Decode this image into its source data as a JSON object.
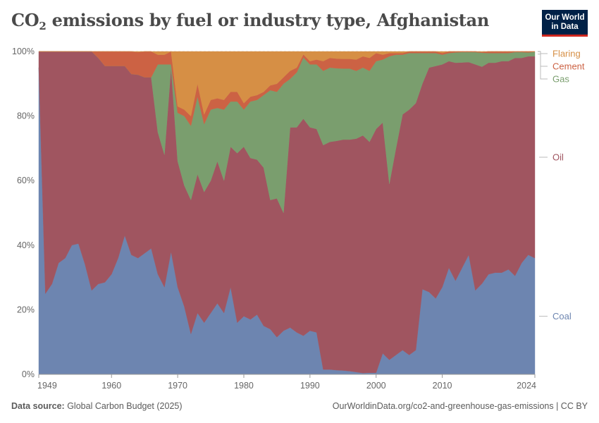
{
  "header": {
    "title_main": "CO",
    "title_sub": "2",
    "title_rest": " emissions by fuel or industry type, Afghanistan",
    "logo_line1": "Our World",
    "logo_line2": "in Data"
  },
  "footer": {
    "source_label": "Data source:",
    "source_value": " Global Carbon Budget (2025)",
    "link": "OurWorldinData.org/co2-and-greenhouse-gas-emissions | CC BY"
  },
  "colors": {
    "coal": "#6d85b0",
    "oil": "#a05560",
    "gas": "#7a9e6e",
    "cement": "#cc6244",
    "flaring": "#d68f45",
    "grid": "#dddddd",
    "axis_text": "#666666"
  },
  "chart_data": {
    "type": "area",
    "stacked": true,
    "normalized": true,
    "title": "CO₂ emissions by fuel or industry type, Afghanistan",
    "x": [
      1949,
      1950,
      1951,
      1952,
      1953,
      1954,
      1955,
      1956,
      1957,
      1958,
      1959,
      1960,
      1961,
      1962,
      1963,
      1964,
      1965,
      1966,
      1967,
      1968,
      1969,
      1970,
      1971,
      1972,
      1973,
      1974,
      1975,
      1976,
      1977,
      1978,
      1979,
      1980,
      1981,
      1982,
      1983,
      1984,
      1985,
      1986,
      1987,
      1988,
      1989,
      1990,
      1991,
      1992,
      1993,
      1994,
      1995,
      1996,
      1997,
      1998,
      1999,
      2000,
      2001,
      2002,
      2003,
      2004,
      2005,
      2006,
      2007,
      2008,
      2009,
      2010,
      2011,
      2012,
      2013,
      2014,
      2015,
      2016,
      2017,
      2018,
      2019,
      2020,
      2021,
      2022,
      2023,
      2024
    ],
    "xticks": [
      1949,
      1960,
      1970,
      1980,
      1990,
      2000,
      2010,
      2024
    ],
    "yticks": [
      0,
      20,
      40,
      60,
      80,
      100
    ],
    "ytick_labels": [
      "0%",
      "20%",
      "40%",
      "60%",
      "80%",
      "100%"
    ],
    "ylim": [
      0,
      100
    ],
    "series": [
      {
        "name": "Coal",
        "values": [
          95,
          25,
          28,
          34.5,
          36,
          40,
          40.5,
          34,
          26,
          28,
          28.5,
          31,
          36,
          43,
          37,
          36,
          37.5,
          39,
          31,
          27,
          38,
          27,
          21,
          12.5,
          19,
          16,
          19,
          22,
          19,
          27,
          16,
          18,
          17,
          18.5,
          15,
          14,
          11.5,
          13.5,
          14.5,
          13,
          12,
          13.5,
          13,
          1.5,
          1.5,
          1.3,
          1.2,
          1.0,
          0.7,
          0.4,
          0.5,
          0.5,
          6.5,
          4.5,
          6,
          7.5,
          6,
          7.5,
          26.5,
          25.5,
          23.5,
          27,
          33,
          29,
          33,
          37,
          26,
          28,
          31,
          31.5,
          31.5,
          32.5,
          30.5,
          34.5,
          37,
          36
        ]
      },
      {
        "name": "Oil",
        "values": [
          5,
          75,
          72,
          65.5,
          64,
          60,
          59.5,
          66,
          74,
          70,
          67,
          64.5,
          59.5,
          52.5,
          56,
          56.8,
          54.5,
          53,
          44,
          41,
          57,
          39,
          37.5,
          41.5,
          43,
          40.5,
          41,
          44,
          41,
          43.5,
          52.5,
          52.5,
          50,
          48,
          49,
          40,
          43,
          36.5,
          62,
          63.5,
          67.5,
          63,
          63,
          69.5,
          70.5,
          71,
          71.5,
          71.7,
          72.3,
          73.6,
          71.5,
          75.5,
          71.5,
          54.5,
          64,
          73,
          76,
          76.5,
          64,
          69.5,
          72,
          69,
          64,
          67.5,
          63.6,
          59.7,
          70,
          67,
          65.5,
          65,
          65.5,
          64.5,
          67.5,
          63.5,
          61.5,
          62.5
        ]
      },
      {
        "name": "Gas",
        "values": [
          0,
          0,
          0,
          0,
          0,
          0,
          0,
          0,
          0,
          0,
          0,
          0,
          0,
          0,
          0,
          0,
          0,
          0,
          21,
          28,
          1,
          15,
          21.5,
          23,
          24,
          21,
          22,
          16.5,
          22,
          14,
          16,
          11.5,
          17.5,
          18.5,
          22.5,
          34,
          33,
          40,
          15,
          17,
          19,
          19.5,
          20,
          23,
          23,
          22.5,
          22,
          22,
          21,
          21,
          22,
          21,
          19.5,
          39.5,
          29,
          18.5,
          17.5,
          15.5,
          9.5,
          4.5,
          4,
          3,
          2.5,
          3.2,
          3.2,
          3.1,
          3.8,
          4.3,
          3,
          3,
          2.5,
          2.5,
          1.8,
          1.8,
          1.2,
          1.4
        ]
      },
      {
        "name": "Cement",
        "values": [
          0,
          0,
          0,
          0,
          0,
          0,
          0,
          0,
          0,
          2,
          4.5,
          4.5,
          4.5,
          4.5,
          7,
          7,
          8,
          8,
          3,
          3,
          4,
          2,
          2,
          3,
          4,
          3,
          3,
          3,
          3,
          3,
          3,
          2,
          1.5,
          1.5,
          1,
          1.5,
          2.5,
          2,
          2.5,
          1.5,
          1,
          1,
          1.5,
          3,
          3,
          3,
          3,
          3,
          3.5,
          3.5,
          4,
          2.5,
          1.5,
          1,
          0.5,
          0.5,
          0.5,
          0.5,
          0.5,
          0.5,
          0.5,
          0.5,
          0.5,
          0.3,
          0.2,
          0.2,
          0.2,
          0.2,
          0.5,
          0.5,
          0.5,
          0.5,
          0.2,
          0.2,
          0.3,
          0.1
        ]
      },
      {
        "name": "Flaring",
        "values": [
          0,
          0,
          0,
          0,
          0,
          0,
          0,
          0,
          0,
          0,
          0,
          0,
          0,
          0,
          0,
          0.2,
          0,
          0,
          1,
          1,
          0,
          17,
          18,
          20,
          10,
          19.5,
          15,
          14.5,
          15,
          12.5,
          12.5,
          16,
          14,
          13.5,
          12.5,
          10.5,
          10,
          8,
          6,
          5,
          0.9,
          3,
          2.5,
          3,
          2,
          2.2,
          2.3,
          2.3,
          2.5,
          1.5,
          2,
          0.5,
          1,
          0.5,
          0.5,
          0.5,
          0,
          0,
          0,
          0,
          0,
          0.5,
          0,
          0,
          0,
          0,
          0,
          0.2,
          0,
          0,
          0,
          0,
          0,
          0,
          0,
          0
        ]
      }
    ],
    "legend": [
      "Flaring",
      "Cement",
      "Gas",
      "Oil",
      "Coal"
    ],
    "legend_placement": "right"
  }
}
